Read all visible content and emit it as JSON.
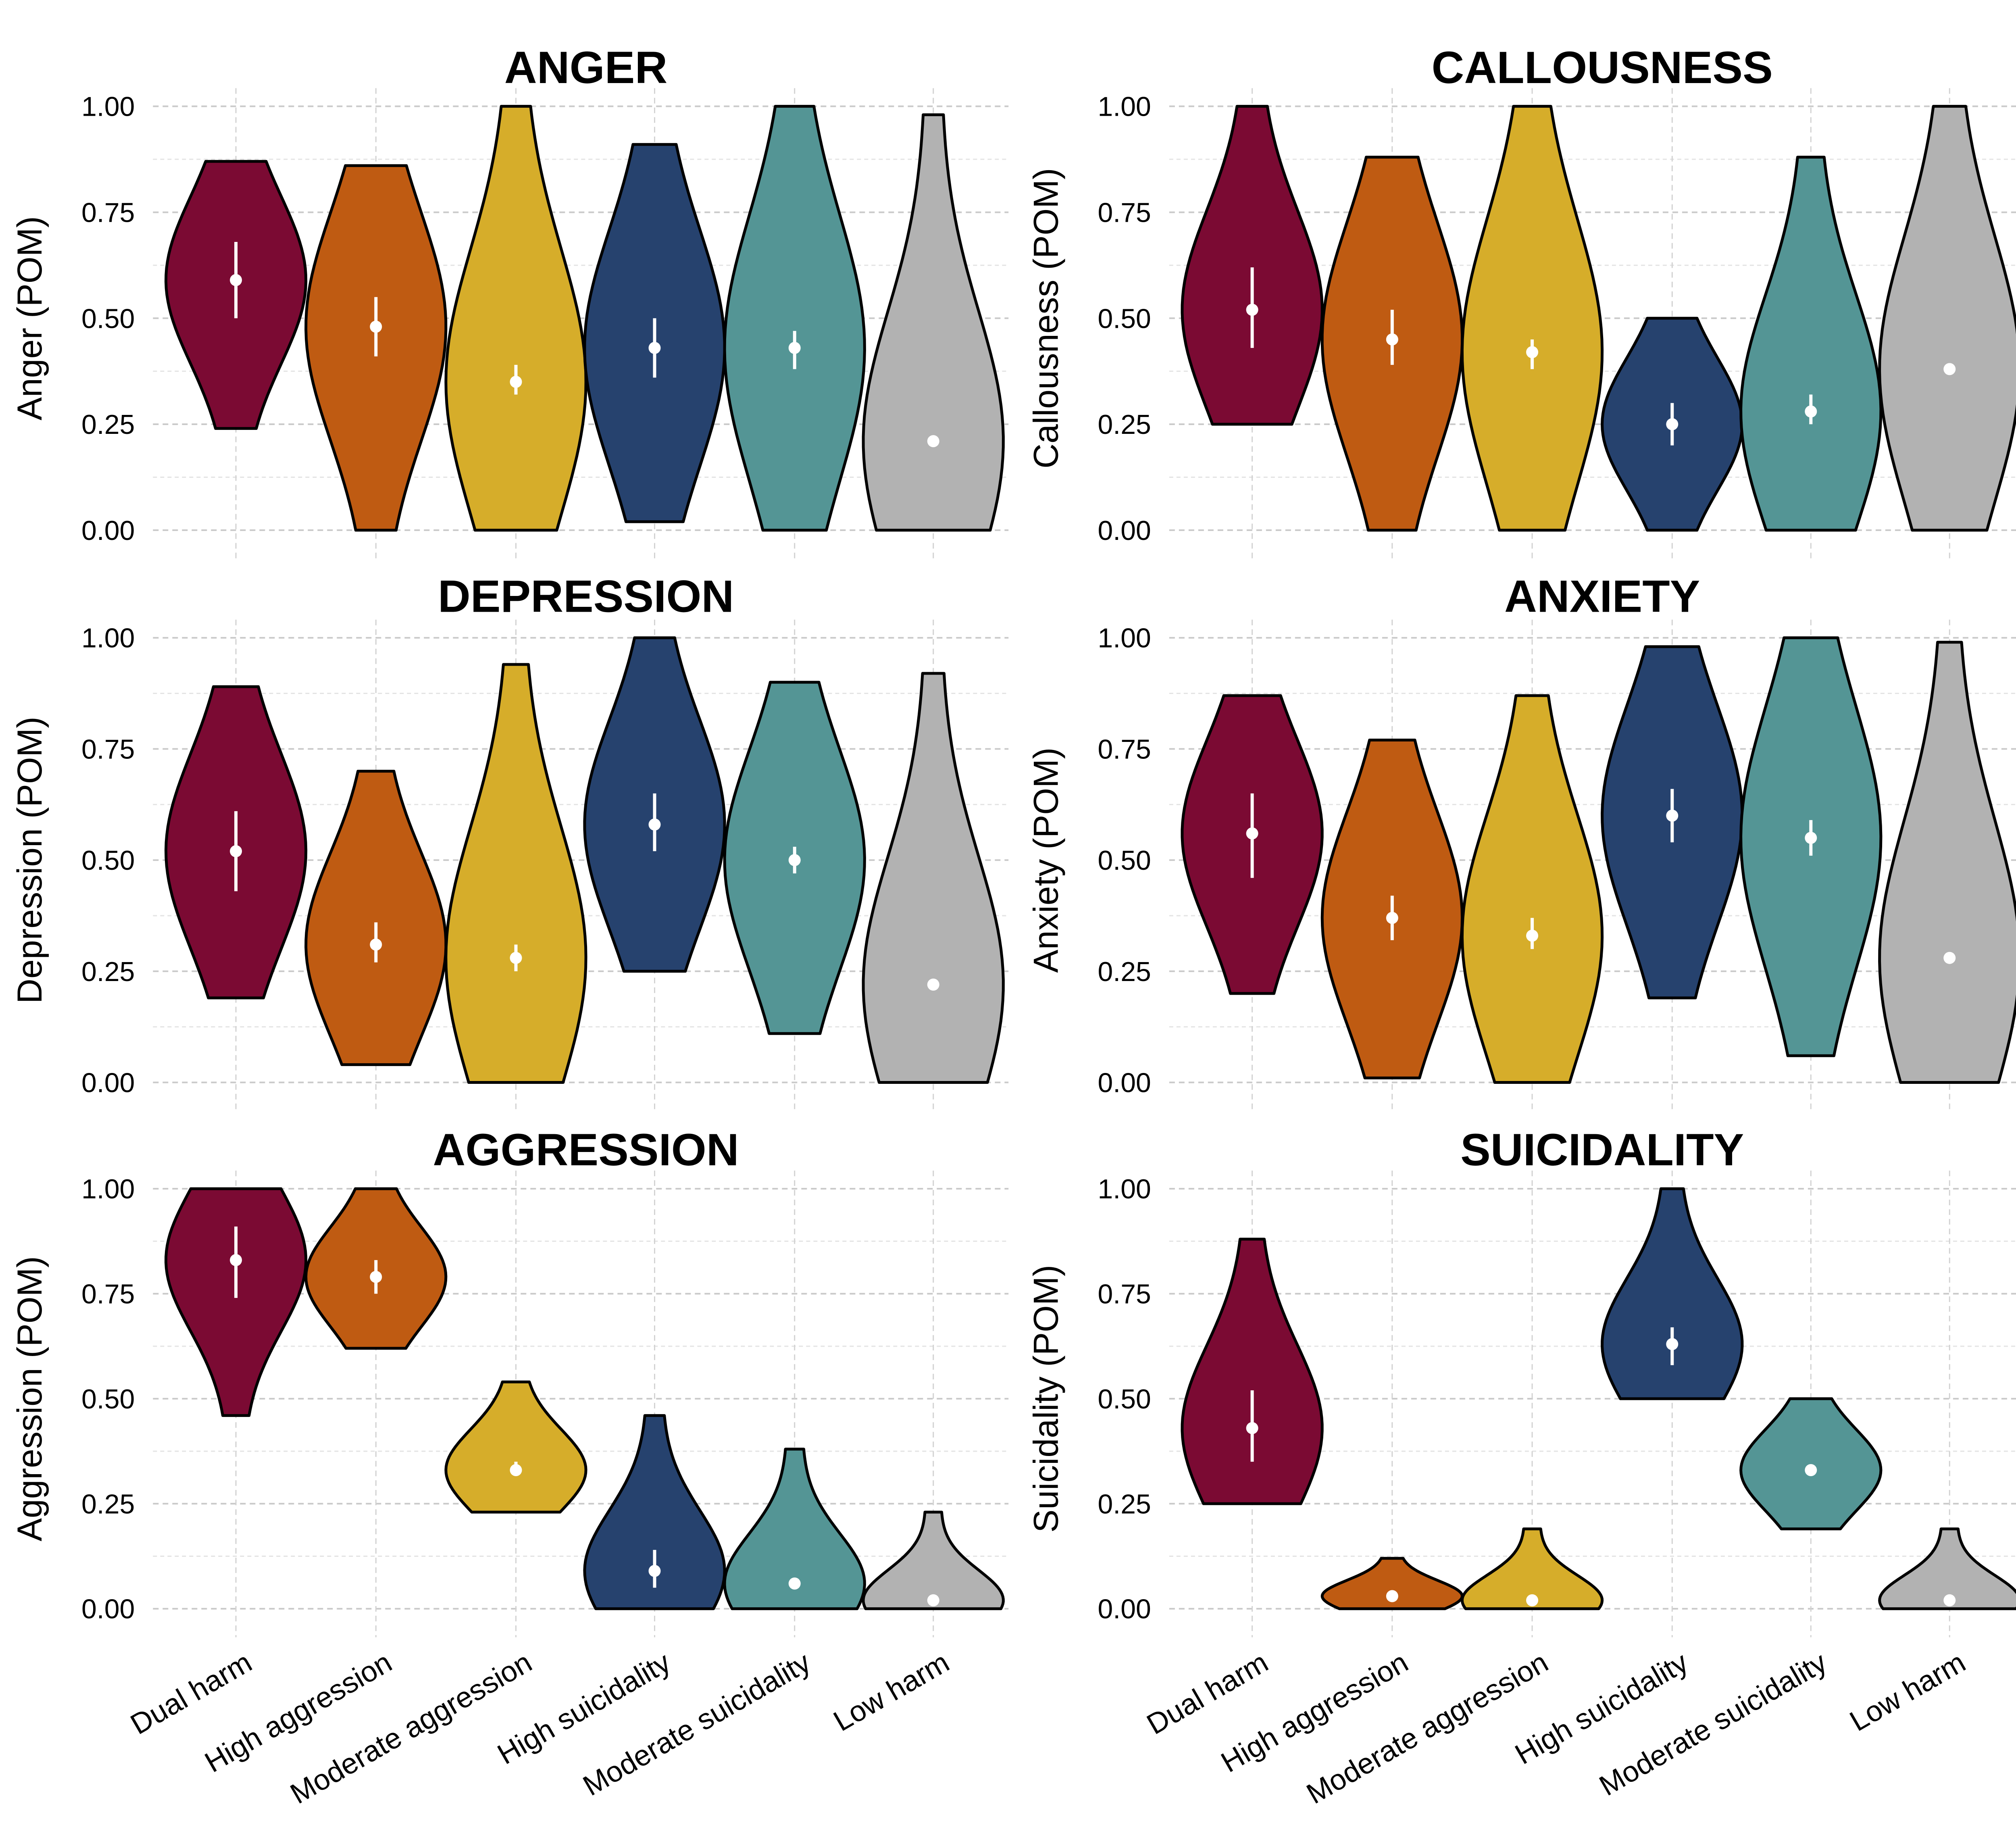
{
  "chart_data": {
    "type": "violin",
    "categories": [
      "Dual harm",
      "High aggression",
      "Moderate aggression",
      "High suicidality",
      "Moderate suicidality",
      "Low harm"
    ],
    "colors": [
      "#7b0a33",
      "#bf5b12",
      "#d6ad2a",
      "#26426e",
      "#549595",
      "#b2b2b2"
    ],
    "y_ticks": [
      "0.00",
      "0.25",
      "0.50",
      "0.75",
      "1.00"
    ],
    "ylim": [
      0,
      1
    ],
    "grid": true,
    "legend": "none",
    "panels": [
      {
        "title": "ANGER",
        "ylabel": "Anger (POM)",
        "series": [
          {
            "min": 0.24,
            "max": 0.87,
            "mean": 0.59,
            "ci": [
              0.5,
              0.68
            ]
          },
          {
            "min": 0.0,
            "max": 0.86,
            "mean": 0.48,
            "ci": [
              0.41,
              0.55
            ]
          },
          {
            "min": 0.0,
            "max": 1.0,
            "mean": 0.35,
            "ci": [
              0.32,
              0.39
            ]
          },
          {
            "min": 0.02,
            "max": 0.91,
            "mean": 0.43,
            "ci": [
              0.36,
              0.5
            ]
          },
          {
            "min": 0.0,
            "max": 1.0,
            "mean": 0.43,
            "ci": [
              0.38,
              0.47
            ]
          },
          {
            "min": 0.0,
            "max": 0.98,
            "mean": 0.21,
            "ci": [
              0.2,
              0.22
            ]
          }
        ]
      },
      {
        "title": "CALLOUSNESS",
        "ylabel": "Callousness (POM)",
        "series": [
          {
            "min": 0.25,
            "max": 1.0,
            "mean": 0.52,
            "ci": [
              0.43,
              0.62
            ]
          },
          {
            "min": 0.0,
            "max": 0.88,
            "mean": 0.45,
            "ci": [
              0.39,
              0.52
            ]
          },
          {
            "min": 0.0,
            "max": 1.0,
            "mean": 0.42,
            "ci": [
              0.38,
              0.45
            ]
          },
          {
            "min": 0.0,
            "max": 0.5,
            "mean": 0.25,
            "ci": [
              0.2,
              0.3
            ]
          },
          {
            "min": 0.0,
            "max": 0.88,
            "mean": 0.28,
            "ci": [
              0.25,
              0.32
            ]
          },
          {
            "min": 0.0,
            "max": 1.0,
            "mean": 0.38,
            "ci": [
              0.37,
              0.39
            ]
          }
        ]
      },
      {
        "title": "DEPRESSION",
        "ylabel": "Depression (POM)",
        "series": [
          {
            "min": 0.19,
            "max": 0.89,
            "mean": 0.52,
            "ci": [
              0.43,
              0.61
            ]
          },
          {
            "min": 0.04,
            "max": 0.7,
            "mean": 0.31,
            "ci": [
              0.27,
              0.36
            ]
          },
          {
            "min": 0.0,
            "max": 0.94,
            "mean": 0.28,
            "ci": [
              0.25,
              0.31
            ]
          },
          {
            "min": 0.25,
            "max": 1.0,
            "mean": 0.58,
            "ci": [
              0.52,
              0.65
            ]
          },
          {
            "min": 0.11,
            "max": 0.9,
            "mean": 0.5,
            "ci": [
              0.47,
              0.53
            ]
          },
          {
            "min": 0.0,
            "max": 0.92,
            "mean": 0.22,
            "ci": [
              0.21,
              0.23
            ]
          }
        ]
      },
      {
        "title": "ANXIETY",
        "ylabel": "Anxiety (POM)",
        "series": [
          {
            "min": 0.2,
            "max": 0.87,
            "mean": 0.56,
            "ci": [
              0.46,
              0.65
            ]
          },
          {
            "min": 0.01,
            "max": 0.77,
            "mean": 0.37,
            "ci": [
              0.32,
              0.42
            ]
          },
          {
            "min": 0.0,
            "max": 0.87,
            "mean": 0.33,
            "ci": [
              0.3,
              0.37
            ]
          },
          {
            "min": 0.19,
            "max": 0.98,
            "mean": 0.6,
            "ci": [
              0.54,
              0.66
            ]
          },
          {
            "min": 0.06,
            "max": 1.0,
            "mean": 0.55,
            "ci": [
              0.51,
              0.59
            ]
          },
          {
            "min": 0.0,
            "max": 0.99,
            "mean": 0.28,
            "ci": [
              0.27,
              0.29
            ]
          }
        ]
      },
      {
        "title": "AGGRESSION",
        "ylabel": "Aggression (POM)",
        "series": [
          {
            "min": 0.46,
            "max": 1.0,
            "mean": 0.83,
            "ci": [
              0.74,
              0.91
            ]
          },
          {
            "min": 0.62,
            "max": 1.0,
            "mean": 0.79,
            "ci": [
              0.75,
              0.83
            ]
          },
          {
            "min": 0.23,
            "max": 0.54,
            "mean": 0.33,
            "ci": [
              0.32,
              0.35
            ]
          },
          {
            "min": 0.0,
            "max": 0.46,
            "mean": 0.09,
            "ci": [
              0.05,
              0.14
            ]
          },
          {
            "min": 0.0,
            "max": 0.38,
            "mean": 0.06,
            "ci": [
              0.05,
              0.07
            ]
          },
          {
            "min": 0.0,
            "max": 0.23,
            "mean": 0.02,
            "ci": [
              0.02,
              0.03
            ]
          }
        ]
      },
      {
        "title": "SUICIDALITY",
        "ylabel": "Suicidality (POM)",
        "series": [
          {
            "min": 0.25,
            "max": 0.88,
            "mean": 0.43,
            "ci": [
              0.35,
              0.52
            ]
          },
          {
            "min": 0.0,
            "max": 0.12,
            "mean": 0.03,
            "ci": [
              0.02,
              0.03
            ]
          },
          {
            "min": 0.0,
            "max": 0.19,
            "mean": 0.02,
            "ci": [
              0.02,
              0.03
            ]
          },
          {
            "min": 0.5,
            "max": 1.0,
            "mean": 0.63,
            "ci": [
              0.58,
              0.67
            ]
          },
          {
            "min": 0.19,
            "max": 0.5,
            "mean": 0.33,
            "ci": [
              0.32,
              0.34
            ]
          },
          {
            "min": 0.0,
            "max": 0.19,
            "mean": 0.02,
            "ci": [
              0.02,
              0.03
            ]
          }
        ]
      }
    ]
  }
}
